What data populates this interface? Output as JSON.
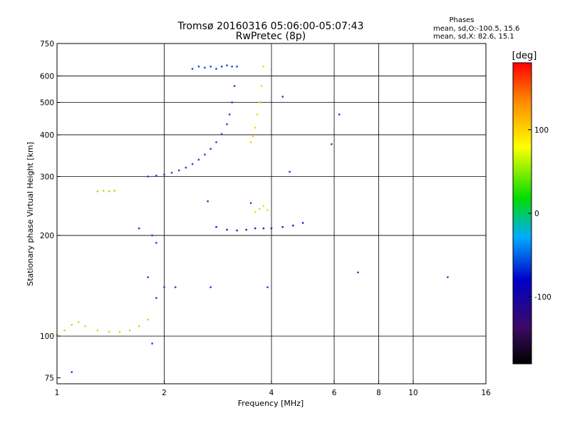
{
  "chart_data": {
    "type": "scatter",
    "title": "Tromsø 20160316 05:06:00-05:07:43",
    "subtitle": "RwPretec (8p)",
    "xlabel": "Frequency [MHz]",
    "ylabel": "Stationary phase Virtual Height [km]",
    "x_scale": "log",
    "y_scale": "log",
    "xlim": [
      1,
      16
    ],
    "ylim": [
      72,
      750
    ],
    "x_ticks": [
      1,
      2,
      4,
      6,
      8,
      10,
      16
    ],
    "x_tick_labels": [
      "1",
      "2",
      "4",
      "6",
      "8",
      "10",
      "16"
    ],
    "x_grid_lines": [
      1,
      2,
      4,
      6,
      8,
      10,
      16
    ],
    "y_ticks": [
      75,
      100,
      200,
      300,
      400,
      500,
      600,
      750
    ],
    "y_tick_labels": [
      "75",
      "100",
      "200",
      "300",
      "400",
      "500",
      "600",
      "750"
    ],
    "y_grid_lines": [
      100,
      200,
      300,
      400,
      500,
      600
    ],
    "grid": true,
    "legend_block": {
      "heading": "Phases",
      "line1": "mean, sd,O:-100.5, 15.6",
      "line2": "mean, sd,X:  82.6, 15.1"
    },
    "colorbar": {
      "label": "[deg]",
      "range": [
        -180,
        180
      ],
      "ticks": [
        100,
        0,
        -100
      ],
      "tick_labels": [
        "100",
        "0",
        "-100"
      ],
      "colormap": "rainbow (black-purple-blue-cyan-green-yellow-orange-red)"
    },
    "series": [
      {
        "id": "o_trace_f_region",
        "phase_deg": -100,
        "color_sampled": "#1e3cd2",
        "points": [
          [
            1.8,
            300
          ],
          [
            1.9,
            302
          ],
          [
            2.0,
            304
          ],
          [
            2.1,
            308
          ],
          [
            2.2,
            313
          ],
          [
            2.3,
            319
          ],
          [
            2.4,
            327
          ],
          [
            2.5,
            337
          ],
          [
            2.6,
            349
          ],
          [
            2.7,
            363
          ],
          [
            2.8,
            380
          ],
          [
            2.9,
            402
          ],
          [
            3.0,
            430
          ],
          [
            3.05,
            460
          ],
          [
            3.1,
            500
          ],
          [
            3.15,
            560
          ],
          [
            3.2,
            640
          ]
        ]
      },
      {
        "id": "x_trace_f_region",
        "phase_deg": 82,
        "color_sampled": "#ffd200",
        "points": [
          [
            3.5,
            380
          ],
          [
            3.55,
            395
          ],
          [
            3.6,
            420
          ],
          [
            3.65,
            460
          ],
          [
            3.7,
            500
          ],
          [
            3.75,
            560
          ],
          [
            3.8,
            640
          ]
        ]
      },
      {
        "id": "top_o_cluster",
        "phase_deg": -100,
        "color_sampled": "#1e3cd2",
        "points": [
          [
            2.4,
            630
          ],
          [
            2.5,
            640
          ],
          [
            2.6,
            635
          ],
          [
            2.7,
            640
          ],
          [
            2.8,
            630
          ],
          [
            2.9,
            640
          ],
          [
            3.0,
            645
          ],
          [
            3.1,
            640
          ]
        ]
      },
      {
        "id": "e_region_trace",
        "phase_deg": 20,
        "color_sampled": "#b4e614",
        "points": [
          [
            1.0,
            101
          ],
          [
            1.05,
            104
          ],
          [
            1.1,
            108
          ],
          [
            1.15,
            110
          ],
          [
            1.2,
            107
          ],
          [
            1.3,
            104
          ],
          [
            1.4,
            103
          ],
          [
            1.5,
            103
          ],
          [
            1.6,
            104
          ],
          [
            1.7,
            107
          ],
          [
            1.8,
            112
          ]
        ]
      },
      {
        "id": "es_f1_trace",
        "phase_deg": -115,
        "color_sampled": "#3214c8",
        "points": [
          [
            2.8,
            212
          ],
          [
            3.0,
            208
          ],
          [
            3.2,
            207
          ],
          [
            3.4,
            208
          ],
          [
            3.6,
            210
          ],
          [
            3.8,
            210
          ],
          [
            4.0,
            210
          ],
          [
            4.3,
            212
          ],
          [
            4.6,
            214
          ],
          [
            4.9,
            218
          ]
        ]
      },
      {
        "id": "green_cluster_270",
        "phase_deg": 20,
        "color_sampled": "#a0dc28",
        "points": [
          [
            1.3,
            271
          ],
          [
            1.35,
            272
          ],
          [
            1.4,
            271
          ],
          [
            1.45,
            272
          ]
        ]
      },
      {
        "id": "green_cluster_240",
        "phase_deg": 30,
        "color_sampled": "#c8e628",
        "points": [
          [
            3.6,
            235
          ],
          [
            3.7,
            240
          ],
          [
            3.8,
            245
          ],
          [
            3.9,
            238
          ]
        ]
      },
      {
        "id": "scattered_dots",
        "phase_deg": -100,
        "color_sampled": "#1e3cd2",
        "points": [
          [
            1.7,
            210
          ],
          [
            1.85,
            200
          ],
          [
            1.9,
            190
          ],
          [
            1.8,
            150
          ],
          [
            2.0,
            140
          ],
          [
            2.15,
            140
          ],
          [
            2.7,
            140
          ],
          [
            3.9,
            140
          ],
          [
            1.85,
            95
          ],
          [
            1.9,
            130
          ],
          [
            4.5,
            310
          ],
          [
            5.9,
            375
          ],
          [
            6.2,
            460
          ],
          [
            7.0,
            155
          ],
          [
            12.5,
            150
          ],
          [
            1.1,
            78
          ],
          [
            2.65,
            253
          ],
          [
            3.5,
            250
          ],
          [
            4.3,
            520
          ]
        ]
      }
    ]
  }
}
